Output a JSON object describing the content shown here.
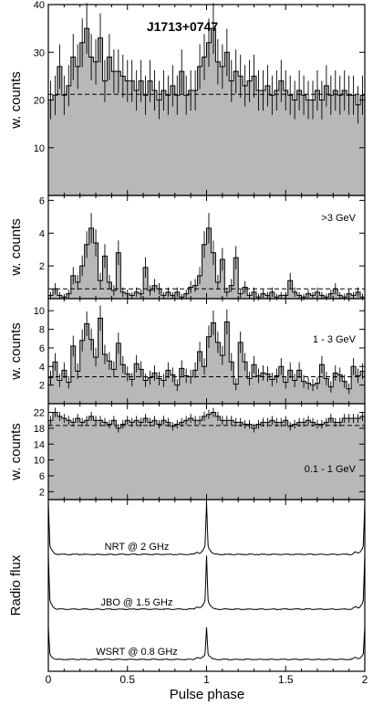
{
  "chart_data": {
    "type": "histogram",
    "title": "J1713+0747",
    "xlabel": "Pulse phase",
    "xlim": [
      0,
      2
    ],
    "xticks": [
      "0",
      "0.5",
      "1",
      "1.5",
      "2"
    ],
    "panels": [
      {
        "id": "all",
        "ylabel": "w. counts",
        "label": "J1713+0747",
        "ylim": [
          0,
          40
        ],
        "yticks": [
          "10",
          "20",
          "30",
          "40"
        ],
        "background": 21.2,
        "values": [
          20,
          21,
          27,
          21,
          23,
          29,
          27,
          32,
          35,
          29,
          28,
          33,
          24,
          29,
          26,
          26,
          25,
          24,
          24,
          22,
          24,
          21,
          24,
          22,
          20,
          22,
          21,
          23,
          21,
          26,
          21,
          22,
          22,
          27,
          29,
          32,
          35,
          28,
          27,
          30,
          24,
          26,
          25,
          23,
          24,
          25,
          22,
          22,
          23,
          21,
          22,
          24,
          22,
          21,
          20,
          22,
          21,
          20,
          20,
          22,
          20,
          23,
          21,
          22,
          21,
          22,
          21,
          21,
          19,
          21
        ]
      },
      {
        "id": "gt3",
        "ylabel": "w. counts",
        "label": ">3 GeV",
        "ylim": [
          0,
          6.3
        ],
        "yticks": [
          "2",
          "4",
          "6"
        ],
        "background": 0.6,
        "values": [
          0.2,
          0.6,
          0.2,
          0.1,
          0.3,
          1.4,
          1.0,
          2.0,
          3.3,
          4.3,
          3.4,
          1.1,
          2.6,
          1.0,
          0.5,
          2.8,
          0.4,
          0.3,
          0.2,
          0.4,
          0.3,
          1.9,
          0.5,
          0.8,
          0.6,
          0.2,
          0.4,
          0.2,
          0.4,
          0.1,
          0.3,
          0.7,
          0.8,
          1.4,
          3.3,
          4.3,
          2.8,
          1.0,
          2.4,
          0.4,
          0.8,
          2.5,
          0.3,
          0.7,
          0.2,
          0.4,
          0.1,
          0.3,
          0.2,
          0.4,
          0.1,
          0.2,
          0.2,
          1.1,
          0.4,
          0.2,
          0.1,
          0.3,
          0.2,
          0.4,
          0.2,
          0.1,
          0.3,
          0.6,
          0.2,
          0.1,
          0.3,
          0.2,
          0.4,
          0.1
        ]
      },
      {
        "id": "1to3",
        "ylabel": "w. counts",
        "label": "1 - 3 GeV",
        "ylim": [
          0,
          11.3
        ],
        "yticks": [
          "2",
          "4",
          "6",
          "8",
          "10"
        ],
        "background": 2.9,
        "values": [
          2.8,
          4.5,
          2.5,
          3.6,
          2.3,
          6.2,
          3.5,
          6.8,
          8.6,
          6.9,
          5.0,
          9.2,
          5.3,
          4.6,
          3.7,
          6.5,
          4.2,
          3.2,
          2.6,
          4.3,
          3.7,
          2.5,
          2.8,
          3.3,
          2.7,
          2.5,
          3.6,
          3.1,
          2.0,
          3.8,
          3.0,
          2.9,
          3.6,
          5.6,
          4.0,
          7.2,
          8.7,
          6.6,
          5.2,
          8.8,
          4.5,
          2.1,
          6.6,
          4.5,
          2.7,
          4.2,
          3.0,
          3.3,
          3.2,
          2.6,
          3.0,
          4.0,
          2.3,
          3.6,
          2.5,
          3.6,
          2.4,
          2.2,
          2.0,
          2.2,
          4.2,
          2.7,
          1.8,
          3.3,
          3.1,
          2.4,
          1.6,
          4.0,
          3.0,
          3.5
        ]
      },
      {
        "id": "0.1to1",
        "ylabel": "w. counts",
        "label": "0.1 - 1 GeV",
        "ylim": [
          0,
          24.2
        ],
        "yticks": [
          "2",
          "6",
          "10",
          "14",
          "18",
          "22"
        ],
        "background": 18.7,
        "values": [
          20,
          22,
          21,
          20.5,
          20,
          19.5,
          20.5,
          19.5,
          20,
          21,
          20,
          20,
          19.5,
          19,
          20,
          18,
          19,
          20,
          19.5,
          20,
          19.5,
          20.5,
          19.5,
          20,
          19,
          20,
          19.5,
          18.5,
          19,
          19.5,
          20,
          20.5,
          20,
          20,
          21,
          21.5,
          22,
          21,
          20,
          20,
          20,
          19.5,
          19.5,
          19,
          19,
          18,
          19,
          19.5,
          19.5,
          20,
          19.5,
          19.5,
          20,
          18.5,
          19,
          19.5,
          19.5,
          20,
          19.5,
          19,
          19,
          19.5,
          20.5,
          19.5,
          19.5,
          20.5,
          20.5,
          20.5,
          20.5,
          21
        ]
      },
      {
        "id": "radio",
        "ylabel": "Radio flux",
        "type": "line",
        "series": [
          {
            "label": "NRT @ 2 GHz",
            "peak_phase": 1.0,
            "peak_height": 1.0
          },
          {
            "label": "JBO @ 1.5 GHz",
            "peak_phase": 1.0,
            "peak_height": 1.0
          },
          {
            "label": "WSRT @ 0.8 GHz",
            "peak_phase": 1.0,
            "peak_height": 0.7
          }
        ]
      }
    ]
  }
}
